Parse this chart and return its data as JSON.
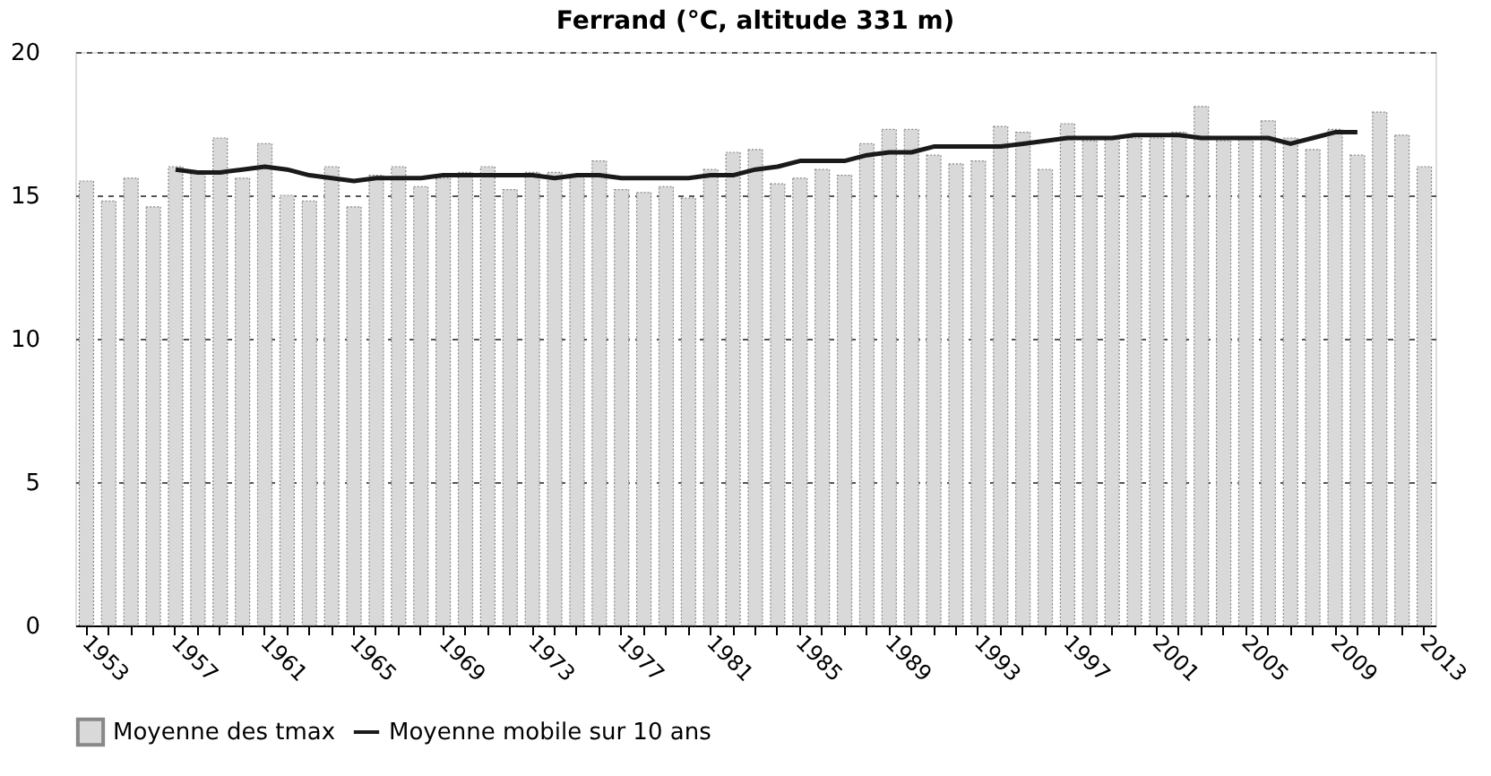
{
  "chart_data": {
    "type": "bar",
    "title": "Ferrand (°C, altitude 331 m)",
    "categories": [
      "1953",
      null,
      null,
      null,
      "1957",
      null,
      null,
      null,
      "1961",
      null,
      null,
      null,
      "1965",
      null,
      null,
      null,
      "1969",
      null,
      null,
      null,
      "1973",
      null,
      null,
      null,
      "1977",
      null,
      null,
      null,
      "1981",
      null,
      null,
      null,
      "1985",
      null,
      null,
      null,
      "1989",
      null,
      null,
      null,
      "1993",
      null,
      null,
      null,
      "1997",
      null,
      null,
      null,
      "2001",
      null,
      null,
      null,
      "2005",
      null,
      null,
      null,
      "2009",
      null,
      null,
      null,
      "2013"
    ],
    "series": [
      {
        "name": "Moyenne des tmax",
        "color": "#d9d9d9",
        "values": [
          15.5,
          14.8,
          15.6,
          14.6,
          16.0,
          15.8,
          17.0,
          15.6,
          16.8,
          15.0,
          14.8,
          16.0,
          14.6,
          15.7,
          16.0,
          15.3,
          15.6,
          15.8,
          16.0,
          15.2,
          15.8,
          15.8,
          15.7,
          16.2,
          15.2,
          15.1,
          15.3,
          14.9,
          15.9,
          16.5,
          16.6,
          15.4,
          15.6,
          15.9,
          15.7,
          16.8,
          17.3,
          17.3,
          16.4,
          16.1,
          16.2,
          17.4,
          17.2,
          15.9,
          17.5,
          16.9,
          17.0,
          17.0,
          17.0,
          17.2,
          18.1,
          16.9,
          17.0,
          17.6,
          17.0,
          16.6,
          17.3,
          16.4,
          17.9,
          17.1,
          16.0
        ]
      },
      {
        "name": "Moyenne mobile sur 10 ans",
        "type": "line",
        "color": "#1a1a1a",
        "values": [
          null,
          null,
          null,
          null,
          15.9,
          15.8,
          15.8,
          15.9,
          16.0,
          15.9,
          15.7,
          15.6,
          15.5,
          15.6,
          15.6,
          15.6,
          15.7,
          15.7,
          15.7,
          15.7,
          15.7,
          15.6,
          15.7,
          15.7,
          15.6,
          15.6,
          15.6,
          15.6,
          15.7,
          15.7,
          15.9,
          16.0,
          16.2,
          16.2,
          16.2,
          16.4,
          16.5,
          16.5,
          16.7,
          16.7,
          16.7,
          16.7,
          16.8,
          16.9,
          17.0,
          17.0,
          17.0,
          17.1,
          17.1,
          17.1,
          17.0,
          17.0,
          17.0,
          17.0,
          16.8,
          17.0,
          17.2,
          17.2,
          null,
          null,
          null
        ]
      }
    ],
    "ylim": [
      0,
      20
    ],
    "yticks": [
      0,
      5,
      10,
      15,
      20
    ],
    "grid": "y",
    "legend": "bottom"
  }
}
